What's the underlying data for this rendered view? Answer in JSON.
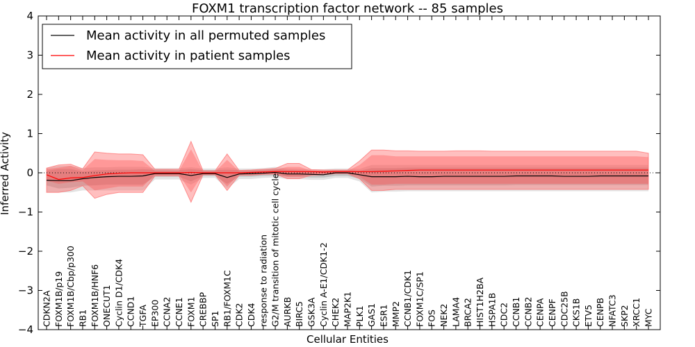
{
  "chart_data": {
    "type": "line",
    "title": "FOXM1 transcription factor network -- 85 samples",
    "xlabel": "Cellular Entities",
    "ylabel": "Inferred Activity",
    "ylim": [
      -4,
      4
    ],
    "yticks": [
      -4,
      -3,
      -2,
      -1,
      0,
      1,
      2,
      3,
      4
    ],
    "reference_line": 0,
    "legend_position": "upper-left",
    "categories": [
      "CDKN2A",
      "FOXM1B/p19",
      "FOXM1B/Cbp/p300",
      "RB1",
      "FOXM1B/HNF6",
      "ONECUT1",
      "Cyclin D1/CDK4",
      "CCND1",
      "TGFA",
      "EP300",
      "CCNA2",
      "CCNE1",
      "FOXM1",
      "CREBBP",
      "SP1",
      "RB1/FOXM1C",
      "CDK2",
      "CDK4",
      "response to radiation",
      "G2/M transition of mitotic cell cycle",
      "AURKB",
      "BIRC5",
      "GSK3A",
      "Cyclin A-E1/CDK1-2",
      "CHEK2",
      "MAP2K1",
      "PLK1",
      "GAS1",
      "ESR1",
      "MMP2",
      "CCNB1/CDK1",
      "FOXM1C/SP1",
      "FOS",
      "NEK2",
      "LAMA4",
      "BRCA2",
      "HIST1H2BA",
      "HSPA1B",
      "CDC2",
      "CCNB1",
      "CCNB2",
      "CENPA",
      "CENPF",
      "CDC25B",
      "CKS1B",
      "ETV5",
      "CENPB",
      "NFATC3",
      "SKP2",
      "XRCC1",
      "MYC"
    ],
    "series": [
      {
        "name": "Mean activity in all permuted samples",
        "color": "#000000",
        "values": [
          -0.19,
          -0.2,
          -0.2,
          -0.15,
          -0.12,
          -0.1,
          -0.09,
          -0.09,
          -0.08,
          -0.02,
          -0.02,
          -0.02,
          -0.07,
          -0.02,
          -0.02,
          -0.12,
          -0.03,
          -0.02,
          -0.01,
          0.01,
          -0.03,
          -0.03,
          -0.04,
          -0.05,
          0.0,
          0.0,
          -0.05,
          -0.1,
          -0.1,
          -0.1,
          -0.09,
          -0.1,
          -0.1,
          -0.09,
          -0.09,
          -0.09,
          -0.09,
          -0.09,
          -0.09,
          -0.08,
          -0.08,
          -0.08,
          -0.08,
          -0.09,
          -0.09,
          -0.09,
          -0.08,
          -0.08,
          -0.08,
          -0.08,
          -0.08
        ],
        "band_inner": [
          [
            -0.32,
            0.05
          ],
          [
            -0.4,
            0.1
          ],
          [
            -0.38,
            0.1
          ],
          [
            -0.33,
            0.03
          ],
          [
            -0.32,
            0.06
          ],
          [
            -0.3,
            0.07
          ],
          [
            -0.3,
            0.08
          ],
          [
            -0.3,
            0.08
          ],
          [
            -0.3,
            0.09
          ],
          [
            -0.1,
            0.08
          ],
          [
            -0.1,
            0.08
          ],
          [
            -0.1,
            0.07
          ],
          [
            -0.22,
            0.09
          ],
          [
            -0.08,
            0.07
          ],
          [
            -0.08,
            0.07
          ],
          [
            -0.28,
            0.08
          ],
          [
            -0.1,
            0.07
          ],
          [
            -0.1,
            0.07
          ],
          [
            -0.08,
            0.08
          ],
          [
            -0.07,
            0.1
          ],
          [
            -0.1,
            0.07
          ],
          [
            -0.1,
            0.06
          ],
          [
            -0.12,
            0.05
          ],
          [
            -0.12,
            0.05
          ],
          [
            -0.08,
            0.07
          ],
          [
            -0.08,
            0.07
          ],
          [
            -0.15,
            0.05
          ],
          [
            -0.35,
            0.12
          ],
          [
            -0.33,
            0.12
          ],
          [
            -0.33,
            0.12
          ],
          [
            -0.32,
            0.13
          ],
          [
            -0.32,
            0.13
          ],
          [
            -0.32,
            0.13
          ],
          [
            -0.32,
            0.13
          ],
          [
            -0.32,
            0.13
          ],
          [
            -0.32,
            0.13
          ],
          [
            -0.32,
            0.13
          ],
          [
            -0.32,
            0.13
          ],
          [
            -0.32,
            0.13
          ],
          [
            -0.31,
            0.13
          ],
          [
            -0.31,
            0.13
          ],
          [
            -0.31,
            0.13
          ],
          [
            -0.31,
            0.13
          ],
          [
            -0.31,
            0.13
          ],
          [
            -0.31,
            0.13
          ],
          [
            -0.31,
            0.13
          ],
          [
            -0.31,
            0.13
          ],
          [
            -0.31,
            0.13
          ],
          [
            -0.31,
            0.13
          ],
          [
            -0.31,
            0.13
          ],
          [
            -0.31,
            0.13
          ]
        ],
        "band_outer": [
          [
            -0.5,
            0.12
          ],
          [
            -0.5,
            0.18
          ],
          [
            -0.5,
            0.18
          ],
          [
            -0.45,
            0.12
          ],
          [
            -0.45,
            0.14
          ],
          [
            -0.45,
            0.14
          ],
          [
            -0.45,
            0.15
          ],
          [
            -0.45,
            0.15
          ],
          [
            -0.45,
            0.15
          ],
          [
            -0.17,
            0.12
          ],
          [
            -0.17,
            0.12
          ],
          [
            -0.17,
            0.12
          ],
          [
            -0.3,
            0.14
          ],
          [
            -0.13,
            0.11
          ],
          [
            -0.13,
            0.11
          ],
          [
            -0.4,
            0.14
          ],
          [
            -0.16,
            0.11
          ],
          [
            -0.16,
            0.11
          ],
          [
            -0.13,
            0.12
          ],
          [
            -0.12,
            0.15
          ],
          [
            -0.16,
            0.11
          ],
          [
            -0.16,
            0.1
          ],
          [
            -0.18,
            0.09
          ],
          [
            -0.18,
            0.09
          ],
          [
            -0.13,
            0.11
          ],
          [
            -0.13,
            0.11
          ],
          [
            -0.22,
            0.1
          ],
          [
            -0.5,
            0.2
          ],
          [
            -0.48,
            0.2
          ],
          [
            -0.48,
            0.2
          ],
          [
            -0.47,
            0.2
          ],
          [
            -0.47,
            0.2
          ],
          [
            -0.47,
            0.2
          ],
          [
            -0.47,
            0.2
          ],
          [
            -0.47,
            0.2
          ],
          [
            -0.47,
            0.2
          ],
          [
            -0.47,
            0.2
          ],
          [
            -0.47,
            0.2
          ],
          [
            -0.47,
            0.2
          ],
          [
            -0.47,
            0.2
          ],
          [
            -0.47,
            0.2
          ],
          [
            -0.47,
            0.2
          ],
          [
            -0.47,
            0.2
          ],
          [
            -0.47,
            0.2
          ],
          [
            -0.47,
            0.2
          ],
          [
            -0.47,
            0.2
          ],
          [
            -0.47,
            0.2
          ],
          [
            -0.47,
            0.2
          ],
          [
            -0.47,
            0.2
          ],
          [
            -0.47,
            0.2
          ],
          [
            -0.47,
            0.2
          ]
        ]
      },
      {
        "name": "Mean activity in patient samples",
        "color": "#ff0000",
        "values": [
          -0.05,
          -0.17,
          -0.13,
          -0.12,
          -0.07,
          -0.03,
          -0.01,
          0.0,
          0.0,
          0.0,
          0.0,
          0.0,
          0.01,
          0.0,
          0.0,
          0.0,
          0.0,
          0.01,
          0.02,
          0.03,
          0.03,
          0.03,
          0.03,
          0.02,
          0.03,
          0.03,
          0.03,
          0.03,
          0.04,
          0.05,
          0.06,
          0.07,
          0.07,
          0.07,
          0.07,
          0.07,
          0.07,
          0.07,
          0.07,
          0.07,
          0.07,
          0.07,
          0.07,
          0.07,
          0.07,
          0.07,
          0.07,
          0.07,
          0.07,
          0.07,
          0.07
        ],
        "band_inner": [
          [
            -0.2,
            0.1
          ],
          [
            -0.28,
            0.13
          ],
          [
            -0.24,
            0.18
          ],
          [
            -0.22,
            0.07
          ],
          [
            -0.45,
            0.35
          ],
          [
            -0.4,
            0.33
          ],
          [
            -0.35,
            0.32
          ],
          [
            -0.35,
            0.32
          ],
          [
            -0.35,
            0.3
          ],
          [
            -0.05,
            0.05
          ],
          [
            -0.05,
            0.05
          ],
          [
            -0.05,
            0.05
          ],
          [
            -0.5,
            0.6
          ],
          [
            -0.03,
            0.03
          ],
          [
            -0.03,
            0.03
          ],
          [
            -0.35,
            0.33
          ],
          [
            -0.04,
            0.04
          ],
          [
            -0.04,
            0.05
          ],
          [
            -0.02,
            0.06
          ],
          [
            -0.02,
            0.08
          ],
          [
            -0.1,
            0.15
          ],
          [
            -0.1,
            0.15
          ],
          [
            -0.04,
            0.06
          ],
          [
            -0.03,
            0.05
          ],
          [
            -0.01,
            0.05
          ],
          [
            -0.01,
            0.05
          ],
          [
            -0.1,
            0.2
          ],
          [
            -0.3,
            0.45
          ],
          [
            -0.3,
            0.45
          ],
          [
            -0.28,
            0.42
          ],
          [
            -0.28,
            0.42
          ],
          [
            -0.28,
            0.42
          ],
          [
            -0.28,
            0.42
          ],
          [
            -0.28,
            0.42
          ],
          [
            -0.28,
            0.42
          ],
          [
            -0.28,
            0.42
          ],
          [
            -0.28,
            0.42
          ],
          [
            -0.28,
            0.42
          ],
          [
            -0.28,
            0.42
          ],
          [
            -0.28,
            0.42
          ],
          [
            -0.28,
            0.42
          ],
          [
            -0.28,
            0.42
          ],
          [
            -0.28,
            0.42
          ],
          [
            -0.28,
            0.42
          ],
          [
            -0.28,
            0.42
          ],
          [
            -0.28,
            0.42
          ],
          [
            -0.28,
            0.42
          ],
          [
            -0.28,
            0.42
          ],
          [
            -0.28,
            0.42
          ],
          [
            -0.28,
            0.42
          ],
          [
            -0.28,
            0.4
          ]
        ],
        "band_outer": [
          [
            -0.5,
            0.12
          ],
          [
            -0.5,
            0.2
          ],
          [
            -0.45,
            0.22
          ],
          [
            -0.33,
            0.1
          ],
          [
            -0.65,
            0.53
          ],
          [
            -0.55,
            0.5
          ],
          [
            -0.5,
            0.48
          ],
          [
            -0.5,
            0.48
          ],
          [
            -0.5,
            0.46
          ],
          [
            -0.08,
            0.09
          ],
          [
            -0.08,
            0.09
          ],
          [
            -0.08,
            0.09
          ],
          [
            -0.75,
            0.8
          ],
          [
            -0.05,
            0.05
          ],
          [
            -0.05,
            0.05
          ],
          [
            -0.45,
            0.48
          ],
          [
            -0.06,
            0.06
          ],
          [
            -0.06,
            0.07
          ],
          [
            -0.04,
            0.09
          ],
          [
            -0.03,
            0.11
          ],
          [
            -0.15,
            0.24
          ],
          [
            -0.15,
            0.24
          ],
          [
            -0.06,
            0.08
          ],
          [
            -0.05,
            0.07
          ],
          [
            -0.02,
            0.07
          ],
          [
            -0.02,
            0.07
          ],
          [
            -0.15,
            0.3
          ],
          [
            -0.45,
            0.58
          ],
          [
            -0.45,
            0.58
          ],
          [
            -0.42,
            0.56
          ],
          [
            -0.42,
            0.56
          ],
          [
            -0.42,
            0.55
          ],
          [
            -0.42,
            0.55
          ],
          [
            -0.42,
            0.55
          ],
          [
            -0.42,
            0.56
          ],
          [
            -0.42,
            0.56
          ],
          [
            -0.42,
            0.56
          ],
          [
            -0.42,
            0.55
          ],
          [
            -0.42,
            0.55
          ],
          [
            -0.42,
            0.55
          ],
          [
            -0.42,
            0.55
          ],
          [
            -0.42,
            0.55
          ],
          [
            -0.42,
            0.55
          ],
          [
            -0.42,
            0.55
          ],
          [
            -0.42,
            0.55
          ],
          [
            -0.42,
            0.55
          ],
          [
            -0.42,
            0.55
          ],
          [
            -0.42,
            0.55
          ],
          [
            -0.42,
            0.55
          ],
          [
            -0.42,
            0.55
          ],
          [
            -0.42,
            0.5
          ]
        ]
      }
    ]
  }
}
